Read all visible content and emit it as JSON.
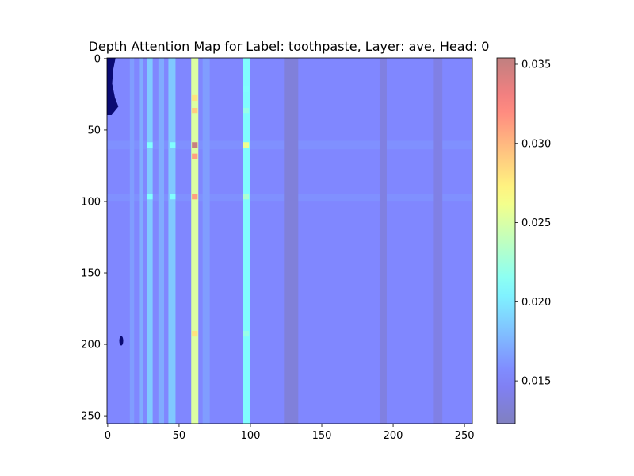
{
  "chart_data": {
    "type": "heatmap",
    "title": "Depth Attention Map for Label: toothpaste, Layer: ave, Head: 0",
    "xlabel": "",
    "ylabel": "",
    "xlim": [
      0,
      255
    ],
    "ylim": [
      255,
      0
    ],
    "x_ticks": [
      "0",
      "50",
      "100",
      "150",
      "200",
      "250"
    ],
    "y_ticks": [
      "0",
      "50",
      "100",
      "150",
      "200",
      "250"
    ],
    "colorbar": {
      "range": [
        0.0123,
        0.0354
      ],
      "ticks": [
        "0.015",
        "0.020",
        "0.025",
        "0.030",
        "0.035"
      ],
      "tick_values": [
        0.015,
        0.02,
        0.025,
        0.03,
        0.035
      ],
      "colormap": "jet",
      "alpha": 0.5
    },
    "background_value": 0.0155,
    "columns": [
      {
        "x": [
          16,
          19
        ],
        "value": 0.0165
      },
      {
        "x": [
          23,
          25
        ],
        "value": 0.0172
      },
      {
        "x": [
          28,
          32
        ],
        "value": 0.0185
      },
      {
        "x": [
          36,
          40
        ],
        "value": 0.0172
      },
      {
        "x": [
          43,
          48
        ],
        "value": 0.0185
      },
      {
        "x": [
          59,
          64
        ],
        "value": 0.0252
      },
      {
        "x": [
          67,
          72
        ],
        "value": 0.0165
      },
      {
        "x": [
          95,
          100
        ],
        "value": 0.0208
      },
      {
        "x": [
          124,
          134
        ],
        "value": 0.0135
      },
      {
        "x": [
          191,
          196
        ],
        "value": 0.0138
      },
      {
        "x": [
          229,
          235
        ],
        "value": 0.014
      }
    ],
    "hotspots": [
      {
        "x": 61.5,
        "y": 28,
        "value": 0.028
      },
      {
        "x": 61.5,
        "y": 37,
        "value": 0.029
      },
      {
        "x": 61.5,
        "y": 61,
        "value": 0.035
      },
      {
        "x": 61.5,
        "y": 69,
        "value": 0.031
      },
      {
        "x": 61.5,
        "y": 97,
        "value": 0.031
      },
      {
        "x": 61.5,
        "y": 193,
        "value": 0.028
      },
      {
        "x": 97.5,
        "y": 22,
        "value": 0.021
      },
      {
        "x": 97.5,
        "y": 37,
        "value": 0.022
      },
      {
        "x": 97.5,
        "y": 61,
        "value": 0.026
      },
      {
        "x": 97.5,
        "y": 97,
        "value": 0.023
      },
      {
        "x": 97.5,
        "y": 193,
        "value": 0.022
      },
      {
        "x": 30,
        "y": 61,
        "value": 0.021
      },
      {
        "x": 46,
        "y": 61,
        "value": 0.021
      },
      {
        "x": 30,
        "y": 97,
        "value": 0.021
      },
      {
        "x": 46,
        "y": 97,
        "value": 0.021
      }
    ],
    "row_bands": [
      {
        "y": [
          58,
          64
        ],
        "value": 0.0162
      },
      {
        "y": [
          95,
          100
        ],
        "value": 0.0162
      }
    ],
    "dark_regions": [
      {
        "type": "edge-blob",
        "x": [
          0,
          8
        ],
        "y": [
          0,
          40
        ]
      },
      {
        "type": "dot",
        "x": 10,
        "y": 198
      }
    ]
  }
}
